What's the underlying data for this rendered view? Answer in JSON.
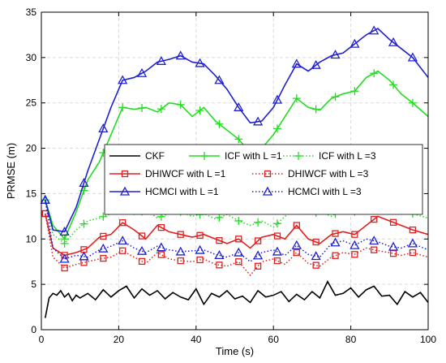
{
  "chart_data": {
    "type": "line",
    "xlabel": "Time (s)",
    "ylabel": "PRMSE (m)",
    "xlim": [
      0,
      100
    ],
    "ylim": [
      0,
      35
    ],
    "xticks": [
      0,
      20,
      40,
      60,
      80,
      100
    ],
    "yticks": [
      0,
      5,
      10,
      15,
      20,
      25,
      30,
      35
    ],
    "grid": true,
    "legend_placement": "center",
    "series": [
      {
        "name": "CKF",
        "color": "#000000",
        "style": "solid",
        "marker": "none",
        "x": [
          1,
          2,
          3,
          4,
          5,
          6,
          7,
          8,
          9,
          10,
          12,
          14,
          16,
          18,
          20,
          22,
          24,
          26,
          28,
          30,
          32,
          34,
          36,
          38,
          40,
          42,
          44,
          46,
          48,
          50,
          52,
          54,
          56,
          58,
          60,
          62,
          64,
          66,
          68,
          70,
          72,
          74,
          76,
          78,
          80,
          82,
          84,
          86,
          88,
          90,
          92,
          94,
          96,
          98,
          100
        ],
        "y": [
          1.3,
          3.5,
          4.0,
          3.8,
          4.3,
          3.6,
          4.0,
          3.2,
          3.8,
          3.5,
          4.0,
          3.3,
          4.4,
          3.6,
          4.3,
          4.8,
          3.5,
          4.5,
          3.8,
          4.3,
          3.4,
          4.1,
          3.6,
          3.3,
          4.5,
          2.8,
          4.0,
          3.6,
          4.3,
          3.4,
          3.7,
          3.0,
          4.3,
          3.6,
          3.8,
          4.2,
          3.1,
          3.9,
          3.3,
          4.2,
          3.5,
          5.3,
          3.8,
          4.0,
          4.6,
          3.6,
          4.4,
          4.8,
          3.7,
          3.8,
          2.8,
          4.2,
          3.6,
          4.1,
          3.0
        ]
      },
      {
        "name": "ICF with L =1",
        "color": "#22dd22",
        "style": "solid",
        "marker": "plus",
        "x": [
          1,
          3,
          6,
          9,
          12,
          15,
          18,
          21,
          24,
          27,
          30,
          33,
          36,
          39,
          42,
          45,
          48,
          51,
          54,
          57,
          60,
          63,
          66,
          69,
          72,
          75,
          78,
          81,
          84,
          87,
          90,
          93,
          96,
          100
        ],
        "y": [
          14.3,
          11.5,
          10.0,
          13.0,
          16.5,
          18.5,
          21.5,
          24.5,
          24.3,
          24.5,
          24.0,
          25.0,
          24.8,
          23.5,
          24.5,
          23.0,
          22.0,
          21.0,
          19.5,
          20.0,
          21.5,
          23.5,
          25.5,
          24.5,
          24.2,
          25.5,
          26.0,
          26.3,
          27.8,
          28.5,
          27.5,
          26.0,
          25.0,
          23.5
        ],
        "marker_x": [
          1,
          6,
          11,
          16,
          21,
          26,
          31,
          36,
          41,
          46,
          51,
          56,
          61,
          66,
          71,
          76,
          81,
          86,
          91,
          96
        ]
      },
      {
        "name": "ICF with L =3",
        "color": "#22dd22",
        "style": "dotted",
        "marker": "plus",
        "x": [
          1,
          3,
          6,
          9,
          12,
          15,
          18,
          21,
          24,
          27,
          30,
          33,
          36,
          39,
          42,
          45,
          48,
          51,
          54,
          57,
          60,
          63,
          66,
          69,
          72,
          75,
          78,
          81,
          84,
          87,
          90,
          93,
          96,
          100
        ],
        "y": [
          14.3,
          10.5,
          9.5,
          11.0,
          12.0,
          12.3,
          12.8,
          13.5,
          12.7,
          13.2,
          12.3,
          12.8,
          13.0,
          12.5,
          12.8,
          12.2,
          12.7,
          12.0,
          11.5,
          12.0,
          11.3,
          12.5,
          13.5,
          12.7,
          13.0,
          12.5,
          13.3,
          13.0,
          14.5,
          14.2,
          13.8,
          13.3,
          12.8,
          12.3
        ],
        "marker_x": [
          1,
          6,
          11,
          16,
          21,
          26,
          31,
          36,
          41,
          46,
          51,
          56,
          61,
          66,
          71,
          76,
          81,
          86,
          91,
          96
        ]
      },
      {
        "name": "DHIWCF with L =1",
        "color": "#e02020",
        "style": "solid",
        "marker": "square",
        "x": [
          1,
          3,
          6,
          9,
          12,
          15,
          18,
          21,
          24,
          27,
          30,
          33,
          36,
          39,
          42,
          45,
          48,
          51,
          54,
          57,
          60,
          63,
          66,
          69,
          72,
          75,
          78,
          81,
          84,
          87,
          90,
          93,
          96,
          100
        ],
        "y": [
          12.8,
          9.0,
          8.2,
          8.5,
          9.0,
          10.2,
          10.5,
          11.8,
          11.0,
          10.0,
          11.5,
          10.8,
          10.5,
          10.2,
          10.5,
          10.0,
          9.5,
          10.0,
          9.0,
          10.2,
          10.5,
          10.0,
          11.5,
          10.0,
          9.5,
          10.5,
          10.8,
          10.5,
          11.5,
          12.5,
          12.0,
          11.5,
          11.0,
          10.5
        ],
        "marker_x": [
          1,
          6,
          11,
          16,
          21,
          26,
          31,
          36,
          41,
          46,
          51,
          56,
          61,
          66,
          71,
          76,
          81,
          86,
          91,
          96
        ]
      },
      {
        "name": "DHIWCF with L =3",
        "color": "#e02020",
        "style": "dotted",
        "marker": "square",
        "x": [
          1,
          3,
          6,
          9,
          12,
          15,
          18,
          21,
          24,
          27,
          30,
          33,
          36,
          39,
          42,
          45,
          48,
          51,
          54,
          57,
          60,
          63,
          66,
          69,
          72,
          75,
          78,
          81,
          84,
          87,
          90,
          93,
          96,
          100
        ],
        "y": [
          12.8,
          8.0,
          6.8,
          7.2,
          7.5,
          7.8,
          8.0,
          8.7,
          8.0,
          7.3,
          8.5,
          7.8,
          7.6,
          7.5,
          7.8,
          7.2,
          7.0,
          7.5,
          6.0,
          7.5,
          7.8,
          7.2,
          8.5,
          7.3,
          7.0,
          8.0,
          8.5,
          8.3,
          9.0,
          8.7,
          8.5,
          8.2,
          8.5,
          8.0
        ],
        "marker_x": [
          1,
          6,
          11,
          16,
          21,
          26,
          31,
          36,
          41,
          46,
          51,
          56,
          61,
          66,
          71,
          76,
          81,
          86,
          91,
          96
        ]
      },
      {
        "name": "HCMCI with L =1",
        "color": "#2020d0",
        "style": "solid",
        "marker": "triangle",
        "x": [
          1,
          3,
          6,
          9,
          12,
          15,
          18,
          21,
          24,
          27,
          30,
          33,
          36,
          39,
          42,
          45,
          48,
          51,
          54,
          57,
          60,
          63,
          66,
          69,
          72,
          75,
          78,
          81,
          84,
          87,
          90,
          93,
          96,
          100
        ],
        "y": [
          14.3,
          11.0,
          10.8,
          13.5,
          17.5,
          21.0,
          24.5,
          27.5,
          27.8,
          28.5,
          29.5,
          29.8,
          30.2,
          29.5,
          29.3,
          28.0,
          26.5,
          24.5,
          22.8,
          23.0,
          24.5,
          27.0,
          29.3,
          28.5,
          29.5,
          30.2,
          30.5,
          31.5,
          32.5,
          33.2,
          32.0,
          31.0,
          30.0,
          27.8
        ],
        "marker_x": [
          1,
          6,
          11,
          16,
          21,
          26,
          31,
          36,
          41,
          46,
          51,
          56,
          61,
          66,
          71,
          76,
          81,
          86,
          91,
          96
        ]
      },
      {
        "name": "HCMCI with L =3",
        "color": "#2020d0",
        "style": "dotted",
        "marker": "triangle",
        "x": [
          1,
          3,
          6,
          9,
          12,
          15,
          18,
          21,
          24,
          27,
          30,
          33,
          36,
          39,
          42,
          45,
          48,
          51,
          54,
          57,
          60,
          63,
          66,
          69,
          72,
          75,
          78,
          81,
          84,
          87,
          90,
          93,
          96,
          100
        ],
        "y": [
          14.3,
          9.0,
          7.8,
          8.2,
          8.0,
          8.8,
          9.2,
          9.8,
          9.0,
          8.5,
          9.2,
          8.8,
          8.6,
          8.7,
          8.8,
          8.3,
          8.0,
          8.5,
          7.5,
          8.5,
          8.8,
          8.2,
          9.3,
          8.3,
          8.0,
          9.5,
          9.8,
          9.3,
          10.0,
          9.7,
          9.2,
          9.0,
          9.5,
          8.8
        ],
        "marker_x": [
          1,
          6,
          11,
          16,
          21,
          26,
          31,
          36,
          41,
          46,
          51,
          56,
          61,
          66,
          71,
          76,
          81,
          86,
          91,
          96
        ]
      }
    ]
  }
}
